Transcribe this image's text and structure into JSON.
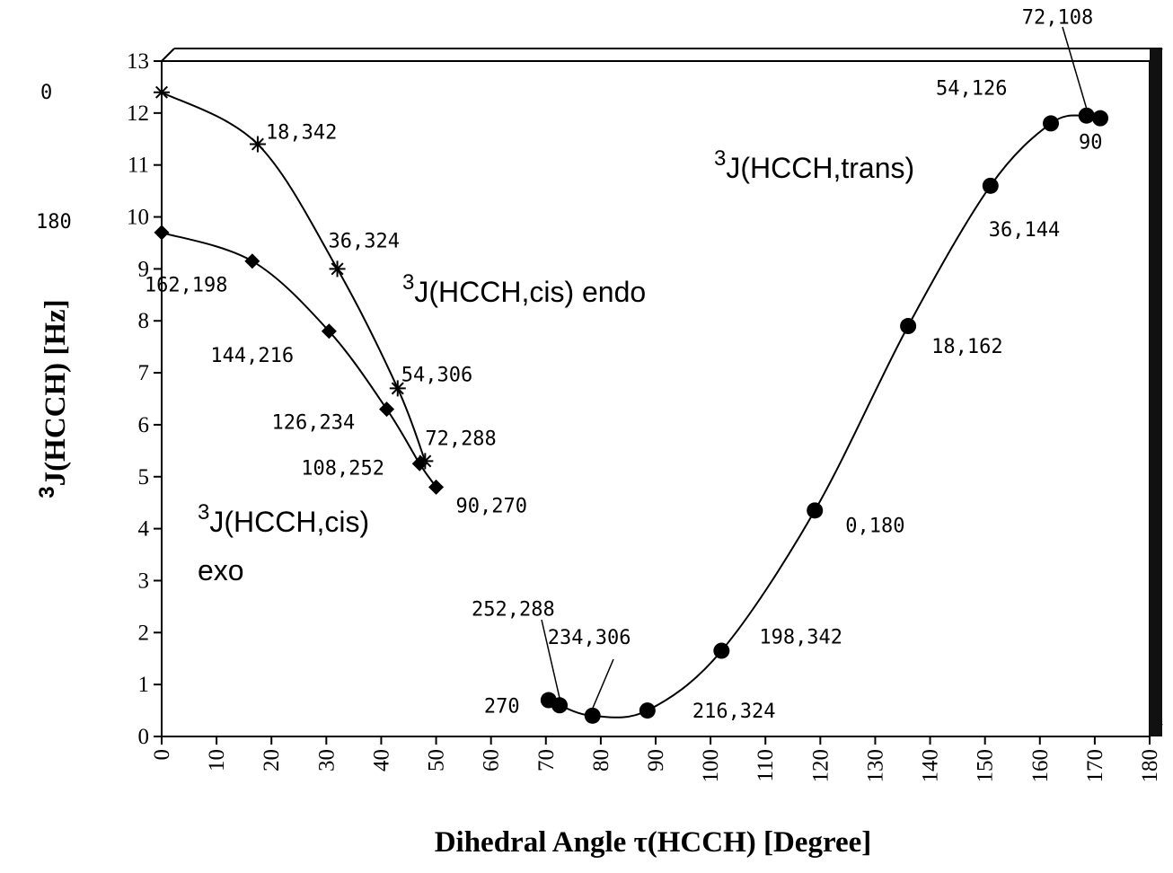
{
  "chart_data": {
    "type": "line",
    "xlabel": "Dihedral Angle τ(HCCH)  [Degree]",
    "ylabel_sup": "3",
    "ylabel": "J(HCCH)  [Hz]",
    "xlim": [
      0,
      180
    ],
    "ylim": [
      0,
      13
    ],
    "x_ticks": [
      0,
      10,
      20,
      30,
      40,
      50,
      60,
      70,
      80,
      90,
      100,
      110,
      120,
      130,
      140,
      150,
      160,
      170,
      180
    ],
    "y_ticks": [
      0,
      1,
      2,
      3,
      4,
      5,
      6,
      7,
      8,
      9,
      10,
      11,
      12,
      13
    ],
    "grid": false,
    "side_labels": [
      "0",
      "180"
    ],
    "series": [
      {
        "name_sup": "3",
        "name": "J(HCCH,cis) endo",
        "marker": "star",
        "points": [
          {
            "x": 0,
            "y": 12.4,
            "label": ""
          },
          {
            "x": 17.5,
            "y": 11.4,
            "label": "18,342"
          },
          {
            "x": 32,
            "y": 9.0,
            "label": "36,324"
          },
          {
            "x": 43,
            "y": 6.7,
            "label": "54,306"
          },
          {
            "x": 48,
            "y": 5.3,
            "label": "72,288"
          }
        ]
      },
      {
        "name_sup": "3",
        "name": "J(HCCH,cis)",
        "name_line2": "exo",
        "marker": "diamond",
        "points": [
          {
            "x": 0,
            "y": 9.7,
            "label": ""
          },
          {
            "x": 16.5,
            "y": 9.15,
            "label": "162,198"
          },
          {
            "x": 30.5,
            "y": 7.8,
            "label": "144,216"
          },
          {
            "x": 41,
            "y": 6.3,
            "label": "126,234"
          },
          {
            "x": 47,
            "y": 5.25,
            "label": "108,252"
          },
          {
            "x": 50,
            "y": 4.8,
            "label": "90,270"
          }
        ]
      },
      {
        "name_sup": "3",
        "name": "J(HCCH,trans)",
        "marker": "circle",
        "points": [
          {
            "x": 70.5,
            "y": 0.7,
            "label": "270"
          },
          {
            "x": 72.5,
            "y": 0.6,
            "label": "252,288"
          },
          {
            "x": 78.5,
            "y": 0.4,
            "label": "234,306"
          },
          {
            "x": 88.5,
            "y": 0.5,
            "label": "216,324"
          },
          {
            "x": 102,
            "y": 1.65,
            "label": "198,342"
          },
          {
            "x": 119,
            "y": 4.35,
            "label": "0,180"
          },
          {
            "x": 136,
            "y": 7.9,
            "label": "18,162"
          },
          {
            "x": 151,
            "y": 10.6,
            "label": "36,144"
          },
          {
            "x": 162,
            "y": 11.8,
            "label": "54,126"
          },
          {
            "x": 168.5,
            "y": 11.95,
            "label": "72,108"
          },
          {
            "x": 171,
            "y": 11.9,
            "label": "90"
          }
        ]
      }
    ]
  }
}
